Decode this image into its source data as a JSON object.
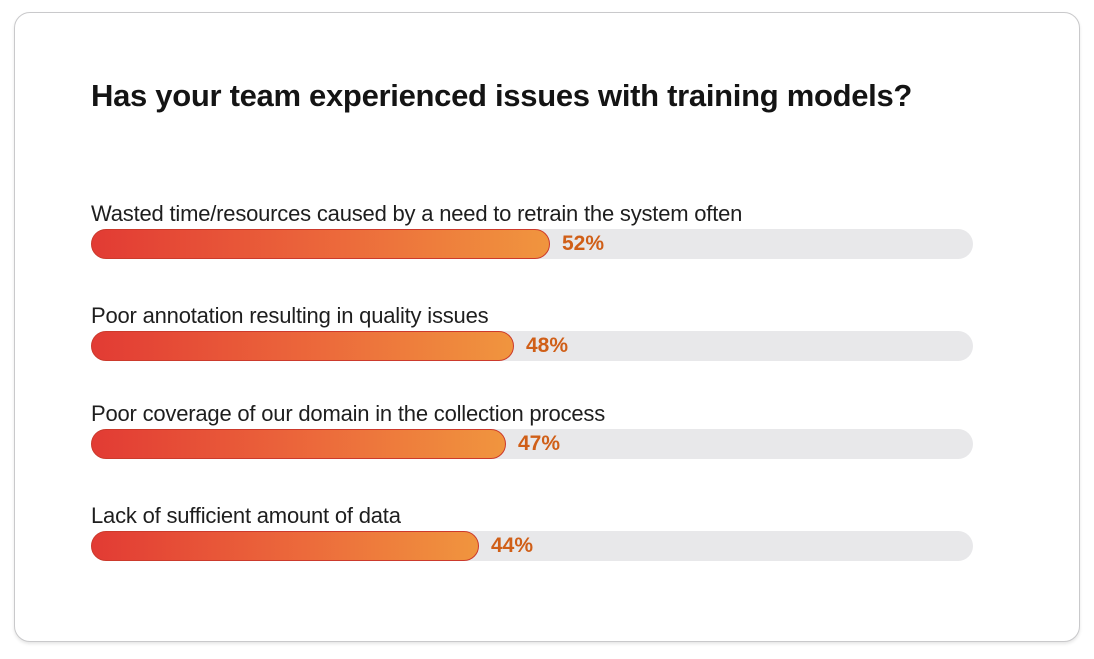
{
  "chart_data": {
    "type": "bar",
    "orientation": "horizontal",
    "title": "Has your team experienced issues with training models?",
    "xlim": [
      0,
      100
    ],
    "grid": false,
    "bars": [
      {
        "label": "Wasted time/resources caused by a need to retrain the system often",
        "value": 52,
        "value_label": "52%"
      },
      {
        "label": "Poor annotation resulting in quality issues",
        "value": 48,
        "value_label": "48%"
      },
      {
        "label": "Poor coverage of our domain in the collection process",
        "value": 47,
        "value_label": "47%"
      },
      {
        "label": "Lack of sufficient amount of data",
        "value": 44,
        "value_label": "44%"
      }
    ]
  },
  "colors": {
    "bar_start": "#e23b34",
    "bar_end": "#f0953e",
    "track": "#e8e8ea",
    "value_text": "#d05f18"
  }
}
